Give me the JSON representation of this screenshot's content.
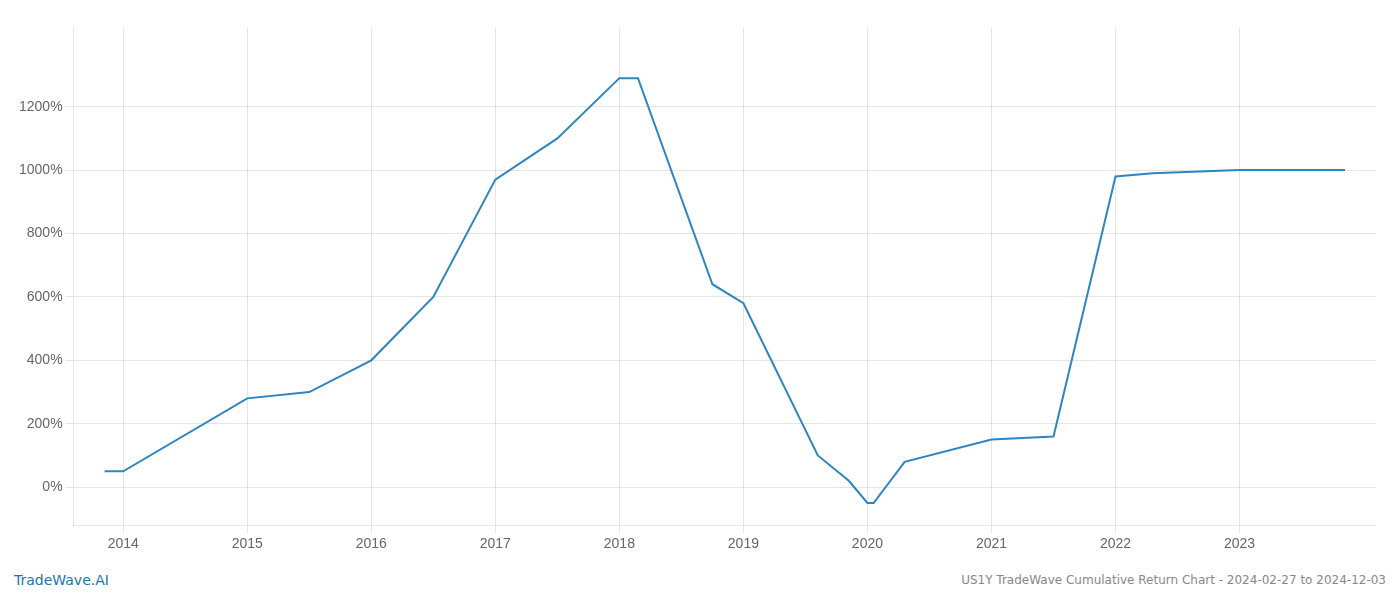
{
  "chart_data": {
    "type": "line",
    "x": [
      2013.85,
      2014.0,
      2015.0,
      2015.5,
      2016.0,
      2016.5,
      2017.0,
      2017.5,
      2018.0,
      2018.15,
      2018.75,
      2019.0,
      2019.6,
      2019.85,
      2020.0,
      2020.05,
      2020.3,
      2021.0,
      2021.5,
      2022.0,
      2022.3,
      2023.0,
      2023.85
    ],
    "values": [
      50,
      50,
      280,
      300,
      400,
      600,
      970,
      1100,
      1290,
      1290,
      640,
      580,
      100,
      20,
      -50,
      -50,
      80,
      150,
      160,
      980,
      990,
      1000,
      1000
    ],
    "color": "#2e86c1",
    "xlim": [
      2013.6,
      2024.1
    ],
    "ylim": [
      -120,
      1450
    ],
    "xticks": [
      2014,
      2015,
      2016,
      2017,
      2018,
      2019,
      2020,
      2021,
      2022,
      2023
    ],
    "yticks": [
      {
        "value": 0,
        "label": "0%"
      },
      {
        "value": 200,
        "label": "200%"
      },
      {
        "value": 400,
        "label": "400%"
      },
      {
        "value": 600,
        "label": "600%"
      },
      {
        "value": 800,
        "label": "800%"
      },
      {
        "value": 1000,
        "label": "1000%"
      },
      {
        "value": 1200,
        "label": "1200%"
      }
    ],
    "grid": true,
    "annotations": [
      {
        "text": "TradeWave.AI",
        "color": "#2176ae"
      },
      {
        "text": "US1Y TradeWave Cumulative Return Chart - 2024-02-27 to 2024-12-03",
        "color": "#888888"
      }
    ]
  }
}
